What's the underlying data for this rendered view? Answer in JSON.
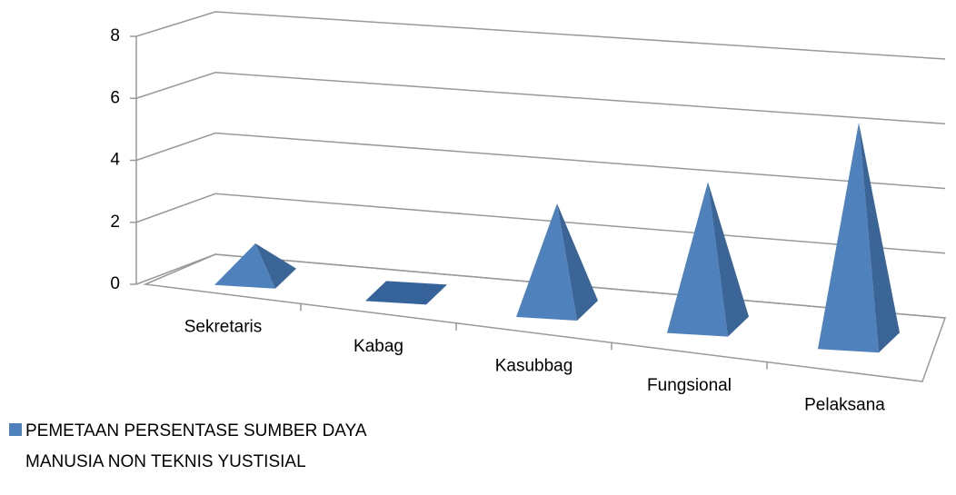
{
  "chart_data": {
    "type": "pyramid3d",
    "categories": [
      "Sekretaris",
      "Kabag",
      "Kasubbag",
      "Fungsional",
      "Pelaksana"
    ],
    "series": [
      {
        "name": "PEMETAAN PERSENTASE SUMBER DAYA MANUSIA NON TEKNIS YUSTISIAL",
        "color": "#4f81bd",
        "values": [
          1,
          0,
          3,
          4,
          6
        ]
      }
    ],
    "ylim": [
      0,
      8
    ],
    "yticks": [
      0,
      2,
      4,
      6,
      8
    ],
    "grid": true,
    "legend": "bottom-left"
  }
}
